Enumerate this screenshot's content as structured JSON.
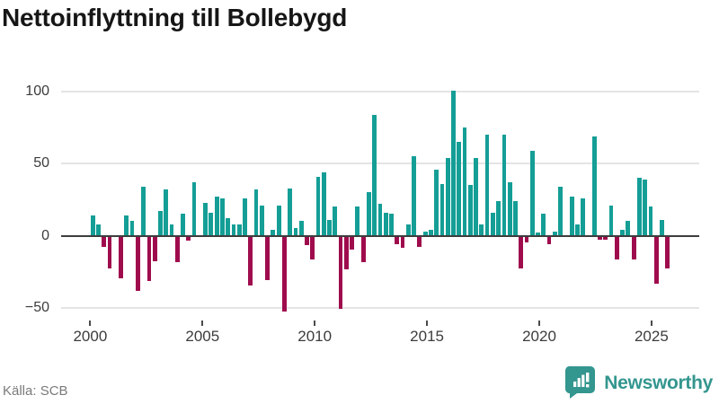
{
  "title": "Nettoinflyttning till Bollebygd",
  "source": "Källa: SCB",
  "logo": {
    "text": "Newsworthy",
    "icon": "newsworthy-chart-bubble-icon"
  },
  "colors": {
    "positive": "#149e96",
    "negative": "#9f0c4d",
    "gridline": "#e4e4e4",
    "zero_line": "#3d3d3d",
    "logo_teal": "#33968f"
  },
  "chart_data": {
    "type": "bar",
    "title": "Nettoinflyttning till Bollebygd",
    "ylabel": "",
    "xlabel": "",
    "frequency": "quarterly",
    "start": "2000Q1",
    "end": "2025Q3",
    "ylim": [
      -62,
      112
    ],
    "grid": "horizontal",
    "y_ticks": [
      {
        "label": "100",
        "v": 100
      },
      {
        "label": "50",
        "v": 50
      },
      {
        "label": "0",
        "v": 0
      },
      {
        "label": "−50",
        "v": -50
      }
    ],
    "x_tick_labels": [
      "2000",
      "2005",
      "2010",
      "2015",
      "2020",
      "2025"
    ],
    "series_by_year": [
      {
        "year": 2000,
        "values": [
          14,
          8,
          -7,
          -22
        ]
      },
      {
        "year": 2001,
        "values": [
          0,
          -29,
          14,
          10
        ]
      },
      {
        "year": 2002,
        "values": [
          -38,
          34,
          -31,
          -17
        ]
      },
      {
        "year": 2003,
        "values": [
          17,
          32,
          8,
          -18
        ]
      },
      {
        "year": 2004,
        "values": [
          15,
          -3,
          37,
          0
        ]
      },
      {
        "year": 2005,
        "values": [
          23,
          16,
          27,
          26
        ]
      },
      {
        "year": 2006,
        "values": [
          12,
          8,
          8,
          26
        ]
      },
      {
        "year": 2007,
        "values": [
          -34,
          32,
          21,
          -30
        ]
      },
      {
        "year": 2008,
        "values": [
          4,
          21,
          -52,
          33
        ]
      },
      {
        "year": 2009,
        "values": [
          5,
          10,
          -6,
          -16
        ]
      },
      {
        "year": 2010,
        "values": [
          41,
          44,
          11,
          20
        ]
      },
      {
        "year": 2011,
        "values": [
          -50,
          -23,
          -9,
          20
        ]
      },
      {
        "year": 2012,
        "values": [
          -18,
          30,
          84,
          22
        ]
      },
      {
        "year": 2013,
        "values": [
          16,
          15,
          -5,
          -8
        ]
      },
      {
        "year": 2014,
        "values": [
          8,
          55,
          -7,
          3
        ]
      },
      {
        "year": 2015,
        "values": [
          4,
          46,
          36,
          54
        ]
      },
      {
        "year": 2016,
        "values": [
          101,
          65,
          75,
          35
        ]
      },
      {
        "year": 2017,
        "values": [
          54,
          8,
          70,
          16
        ]
      },
      {
        "year": 2018,
        "values": [
          24,
          70,
          37,
          24
        ]
      },
      {
        "year": 2019,
        "values": [
          -22,
          -4,
          59,
          2
        ]
      },
      {
        "year": 2020,
        "values": [
          15,
          -5,
          3,
          34
        ]
      },
      {
        "year": 2021,
        "values": [
          0,
          27,
          8,
          26
        ]
      },
      {
        "year": 2022,
        "values": [
          0,
          69,
          -2,
          -2
        ]
      },
      {
        "year": 2023,
        "values": [
          21,
          -16,
          4,
          10
        ]
      },
      {
        "year": 2024,
        "values": [
          -16,
          40,
          39,
          20
        ]
      },
      {
        "year": 2025,
        "values": [
          -33,
          11,
          -22
        ]
      }
    ]
  }
}
